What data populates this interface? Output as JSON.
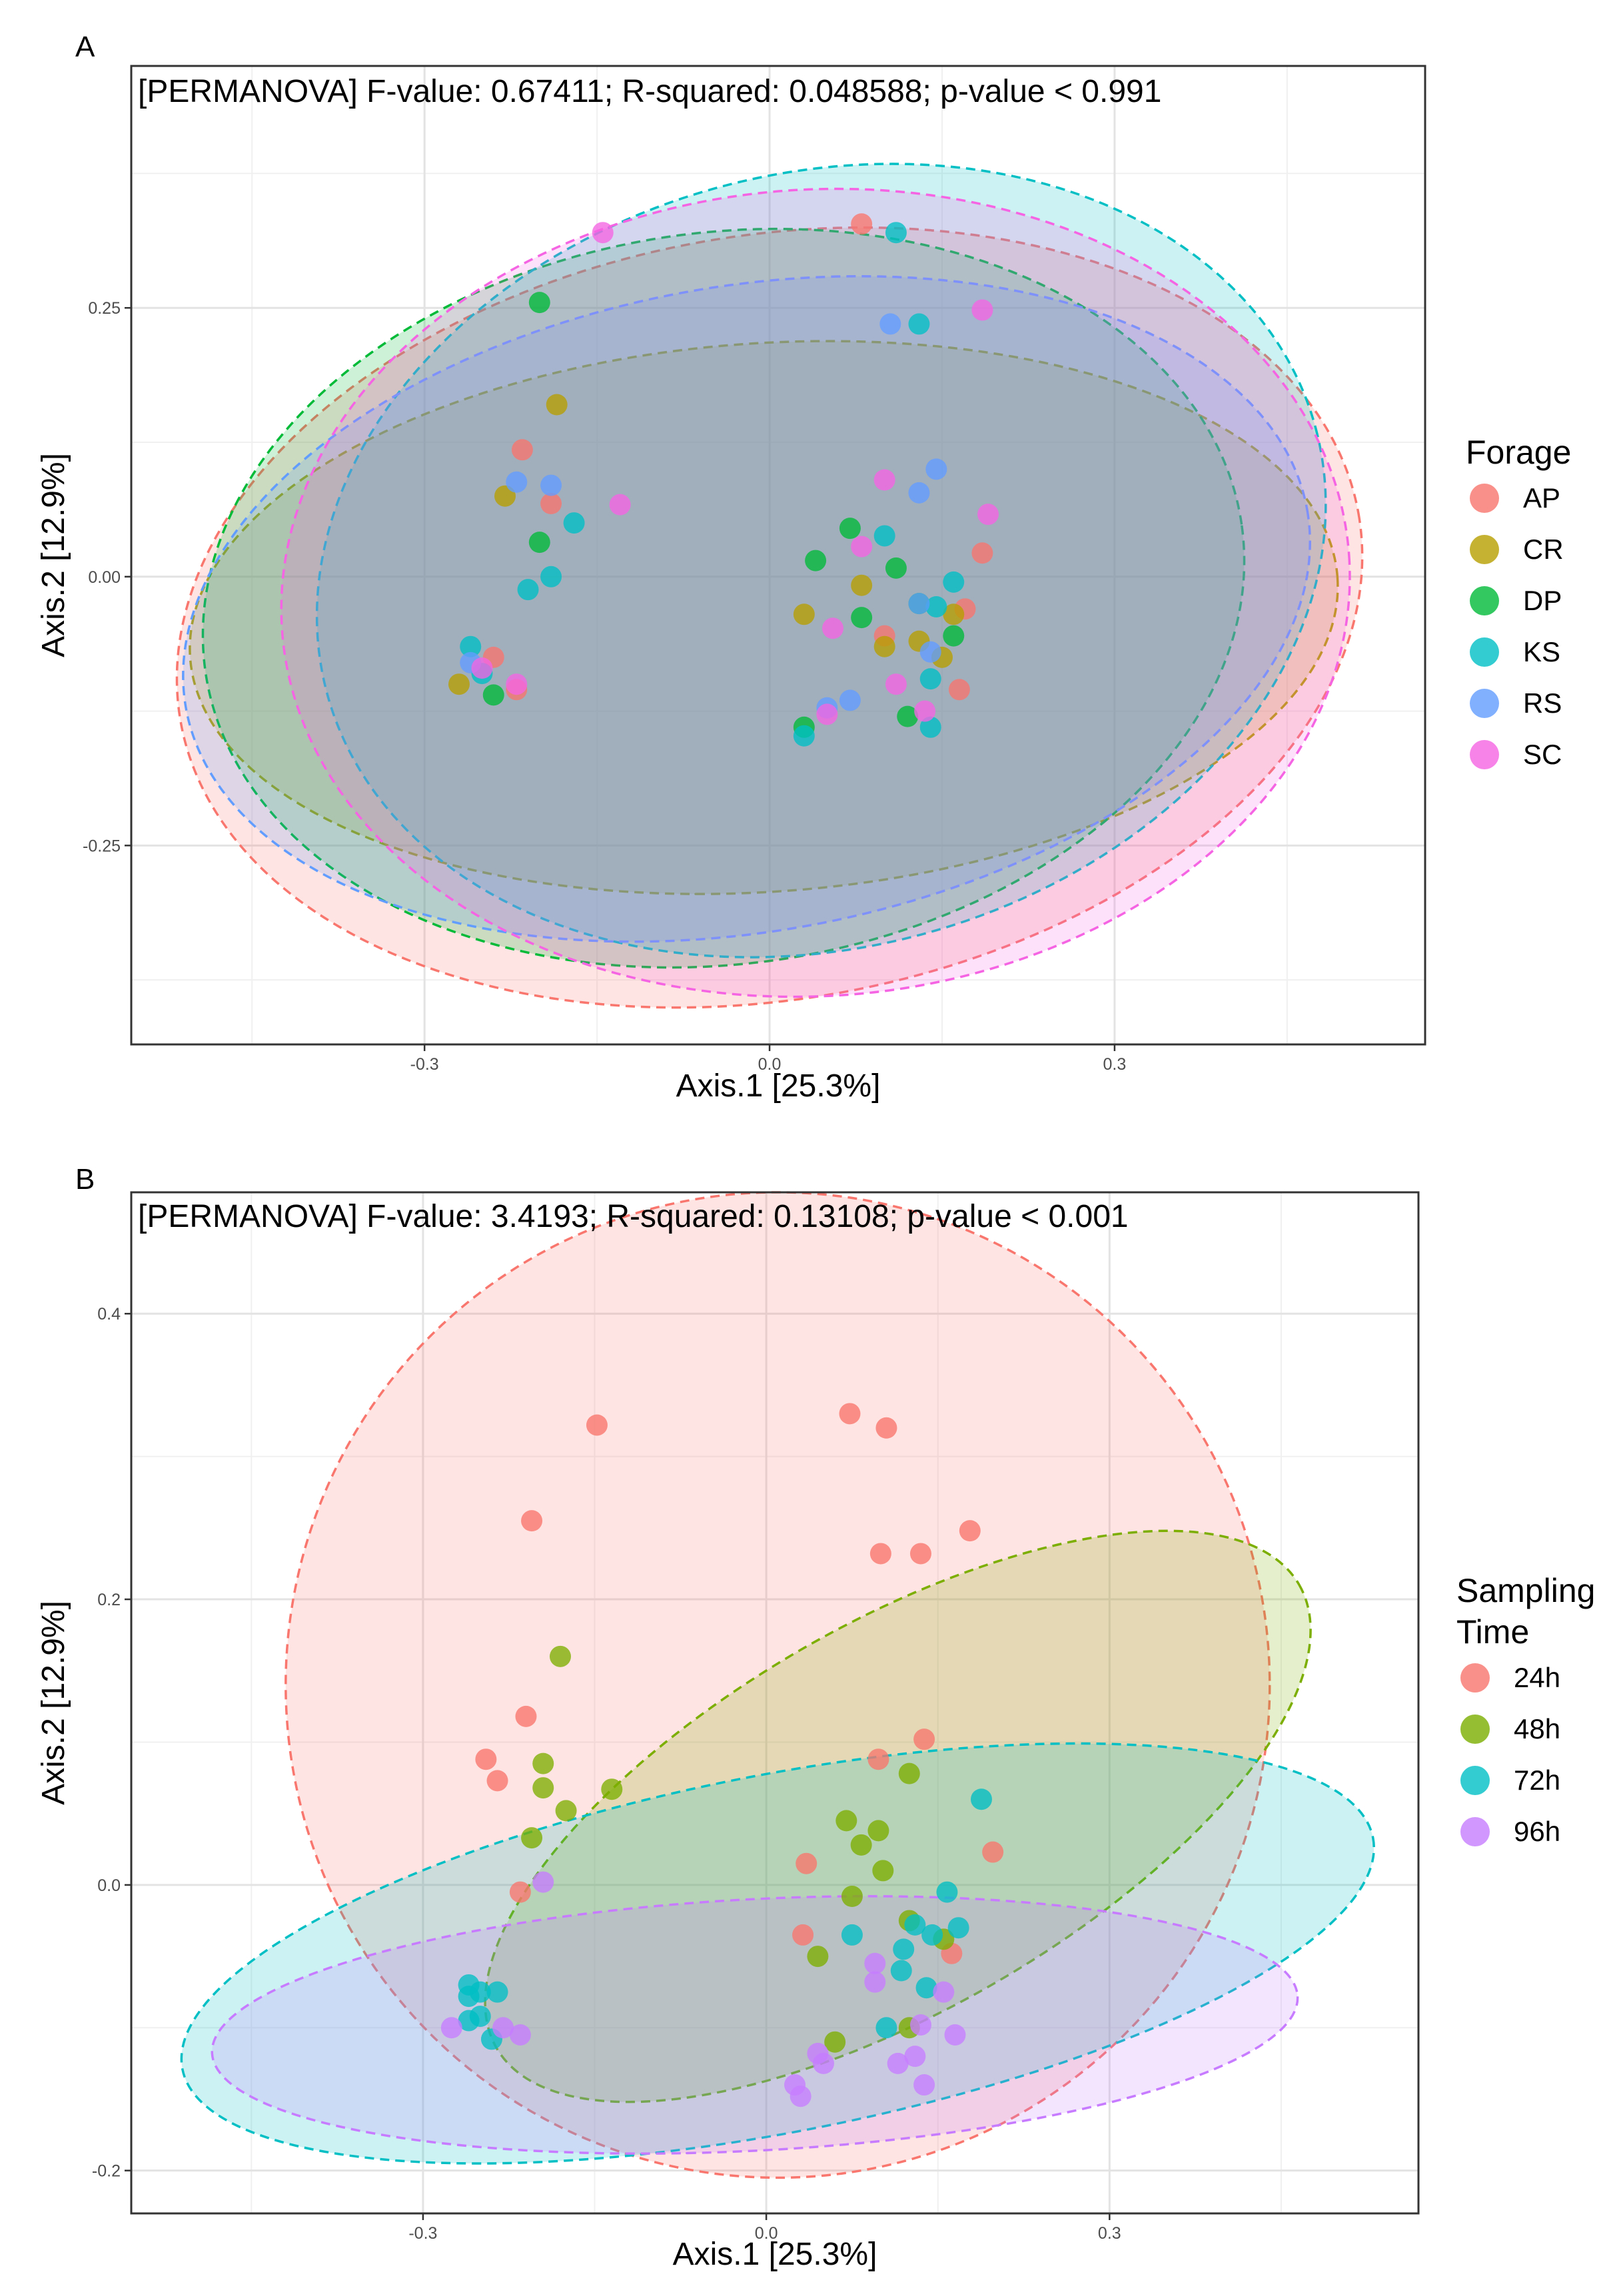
{
  "chart_data": [
    {
      "type": "scatter",
      "panel": "A",
      "title": "[PERMANOVA] F-value: 0.67411; R-squared: 0.048588; p-value < 0.991",
      "xlabel": "Axis.1 [25.3%]",
      "ylabel": "Axis.2 [12.9%]",
      "xlim": [
        -0.555,
        0.57
      ],
      "ylim": [
        -0.435,
        0.475
      ],
      "xticks": [
        -0.3,
        0.0,
        0.3
      ],
      "xtick_labels": [
        "-0.3",
        "0.0",
        "0.3"
      ],
      "yticks": [
        -0.25,
        0.0,
        0.25
      ],
      "ytick_labels": [
        "-0.25",
        "0.00",
        "0.25"
      ],
      "grid": true,
      "legend_title": "Forage",
      "legend_position": "right",
      "series": [
        {
          "name": "AP",
          "color": "#F8766D",
          "ellipse": {
            "cx": 0.0,
            "cy": -0.038,
            "rx": 0.52,
            "ry": 0.355,
            "angle": -10
          },
          "points": [
            [
              0.08,
              0.328
            ],
            [
              -0.215,
              0.118
            ],
            [
              -0.19,
              0.068
            ],
            [
              -0.24,
              -0.075
            ],
            [
              -0.22,
              -0.105
            ],
            [
              0.1,
              -0.055
            ],
            [
              0.17,
              -0.03
            ],
            [
              0.165,
              -0.105
            ],
            [
              0.185,
              0.022
            ]
          ]
        },
        {
          "name": "CR",
          "color": "#B79F00",
          "ellipse": {
            "cx": -0.005,
            "cy": -0.038,
            "rx": 0.5,
            "ry": 0.255,
            "angle": -4
          },
          "points": [
            [
              -0.185,
              0.16
            ],
            [
              -0.23,
              0.075
            ],
            [
              -0.27,
              -0.1
            ],
            [
              0.03,
              -0.035
            ],
            [
              0.08,
              -0.008
            ],
            [
              0.1,
              -0.065
            ],
            [
              0.13,
              -0.06
            ],
            [
              0.15,
              -0.075
            ],
            [
              0.16,
              -0.035
            ]
          ]
        },
        {
          "name": "DP",
          "color": "#00BA38",
          "ellipse": {
            "cx": -0.04,
            "cy": -0.02,
            "rx": 0.455,
            "ry": 0.34,
            "angle": -8
          },
          "points": [
            [
              -0.2,
              0.255
            ],
            [
              -0.2,
              0.032
            ],
            [
              -0.24,
              -0.11
            ],
            [
              0.04,
              0.015
            ],
            [
              0.07,
              0.045
            ],
            [
              0.08,
              -0.038
            ],
            [
              0.11,
              0.008
            ],
            [
              0.13,
              -0.025
            ],
            [
              0.16,
              -0.055
            ],
            [
              0.12,
              -0.13
            ],
            [
              0.03,
              -0.14
            ]
          ]
        },
        {
          "name": "KS",
          "color": "#00BFC4",
          "ellipse": {
            "cx": 0.045,
            "cy": 0.015,
            "rx": 0.445,
            "ry": 0.36,
            "angle": -15
          },
          "points": [
            [
              0.11,
              0.32
            ],
            [
              0.13,
              0.235
            ],
            [
              -0.17,
              0.05
            ],
            [
              -0.19,
              0.0
            ],
            [
              -0.21,
              -0.012
            ],
            [
              -0.26,
              -0.065
            ],
            [
              -0.25,
              -0.09
            ],
            [
              0.1,
              0.038
            ],
            [
              0.145,
              -0.028
            ],
            [
              0.16,
              -0.005
            ],
            [
              0.14,
              -0.095
            ],
            [
              0.14,
              -0.14
            ],
            [
              0.03,
              -0.148
            ]
          ]
        },
        {
          "name": "RS",
          "color": "#619CFF",
          "ellipse": {
            "cx": -0.02,
            "cy": -0.03,
            "rx": 0.495,
            "ry": 0.3,
            "angle": -10
          },
          "points": [
            [
              0.105,
              0.235
            ],
            [
              0.145,
              0.1
            ],
            [
              0.13,
              0.078
            ],
            [
              -0.22,
              0.088
            ],
            [
              -0.19,
              0.085
            ],
            [
              -0.26,
              -0.08
            ],
            [
              0.14,
              -0.07
            ],
            [
              0.07,
              -0.115
            ],
            [
              0.05,
              -0.122
            ],
            [
              0.13,
              -0.025
            ]
          ]
        },
        {
          "name": "SC",
          "color": "#F564E3",
          "ellipse": {
            "cx": 0.04,
            "cy": -0.015,
            "rx": 0.465,
            "ry": 0.375,
            "angle": -4
          },
          "points": [
            [
              -0.145,
              0.32
            ],
            [
              0.185,
              0.248
            ],
            [
              0.1,
              0.09
            ],
            [
              0.19,
              0.058
            ],
            [
              -0.13,
              0.067
            ],
            [
              0.08,
              0.028
            ],
            [
              -0.25,
              -0.085
            ],
            [
              -0.22,
              -0.1
            ],
            [
              0.055,
              -0.048
            ],
            [
              0.11,
              -0.1
            ],
            [
              0.135,
              -0.125
            ],
            [
              0.05,
              -0.128
            ]
          ]
        }
      ]
    },
    {
      "type": "scatter",
      "panel": "B",
      "title": "[PERMANOVA] F-value: 3.4193; R-squared: 0.13108; p-value < 0.001",
      "xlabel": "Axis.1 [25.3%]",
      "ylabel": "Axis.2 [12.9%]",
      "xlim": [
        -0.555,
        0.57
      ],
      "ylim": [
        -0.23,
        0.485
      ],
      "xticks": [
        -0.3,
        0.0,
        0.3
      ],
      "xtick_labels": [
        "-0.3",
        "0.0",
        "0.3"
      ],
      "yticks": [
        -0.2,
        0.0,
        0.2,
        0.4
      ],
      "ytick_labels": [
        "-0.2",
        "0.0",
        "0.2",
        "0.4"
      ],
      "grid": true,
      "legend_title": "Sampling Time",
      "legend_position": "right",
      "series": [
        {
          "name": "24h",
          "color": "#F8766D",
          "ellipse": {
            "cx": 0.01,
            "cy": 0.14,
            "rx": 0.43,
            "ry": 0.345,
            "angle": 0
          },
          "points": [
            [
              -0.148,
              0.322
            ],
            [
              0.073,
              0.33
            ],
            [
              0.105,
              0.32
            ],
            [
              -0.205,
              0.255
            ],
            [
              0.1,
              0.232
            ],
            [
              0.135,
              0.232
            ],
            [
              0.178,
              0.248
            ],
            [
              -0.21,
              0.118
            ],
            [
              -0.245,
              0.088
            ],
            [
              -0.235,
              0.073
            ],
            [
              0.098,
              0.088
            ],
            [
              0.138,
              0.102
            ],
            [
              0.198,
              0.023
            ],
            [
              0.035,
              0.015
            ],
            [
              -0.215,
              -0.005
            ],
            [
              0.032,
              -0.035
            ],
            [
              0.162,
              -0.048
            ]
          ]
        },
        {
          "name": "48h",
          "color": "#7CAE00",
          "ellipse": {
            "cx": 0.115,
            "cy": 0.048,
            "rx": 0.405,
            "ry": 0.135,
            "angle": -30
          },
          "points": [
            [
              -0.18,
              0.16
            ],
            [
              -0.195,
              0.085
            ],
            [
              -0.195,
              0.068
            ],
            [
              -0.175,
              0.052
            ],
            [
              -0.135,
              0.067
            ],
            [
              -0.205,
              0.033
            ],
            [
              0.07,
              0.045
            ],
            [
              0.098,
              0.038
            ],
            [
              0.083,
              0.028
            ],
            [
              0.102,
              0.01
            ],
            [
              0.125,
              0.078
            ],
            [
              0.075,
              -0.008
            ],
            [
              0.125,
              -0.025
            ],
            [
              0.045,
              -0.05
            ],
            [
              0.155,
              -0.038
            ],
            [
              0.06,
              -0.11
            ],
            [
              0.125,
              -0.1
            ]
          ]
        },
        {
          "name": "72h",
          "color": "#00BFC4",
          "ellipse": {
            "cx": 0.01,
            "cy": -0.048,
            "rx": 0.53,
            "ry": 0.125,
            "angle": -11
          },
          "points": [
            [
              0.188,
              0.06
            ],
            [
              0.158,
              -0.005
            ],
            [
              0.075,
              -0.035
            ],
            [
              0.13,
              -0.028
            ],
            [
              0.145,
              -0.035
            ],
            [
              0.168,
              -0.03
            ],
            [
              0.12,
              -0.045
            ],
            [
              0.118,
              -0.06
            ],
            [
              0.14,
              -0.072
            ],
            [
              0.105,
              -0.1
            ],
            [
              -0.26,
              -0.07
            ],
            [
              -0.26,
              -0.078
            ],
            [
              -0.25,
              -0.075
            ],
            [
              -0.235,
              -0.075
            ],
            [
              -0.26,
              -0.095
            ],
            [
              -0.25,
              -0.092
            ],
            [
              -0.24,
              -0.108
            ]
          ]
        },
        {
          "name": "96h",
          "color": "#C77CFF",
          "ellipse": {
            "cx": -0.01,
            "cy": -0.098,
            "rx": 0.475,
            "ry": 0.088,
            "angle": -3
          },
          "points": [
            [
              -0.195,
              0.002
            ],
            [
              0.095,
              -0.055
            ],
            [
              0.095,
              -0.068
            ],
            [
              0.155,
              -0.075
            ],
            [
              -0.275,
              -0.1
            ],
            [
              -0.23,
              -0.1
            ],
            [
              -0.215,
              -0.105
            ],
            [
              0.165,
              -0.105
            ],
            [
              0.135,
              -0.098
            ],
            [
              0.045,
              -0.118
            ],
            [
              0.05,
              -0.125
            ],
            [
              0.115,
              -0.125
            ],
            [
              0.13,
              -0.12
            ],
            [
              0.025,
              -0.14
            ],
            [
              0.03,
              -0.148
            ],
            [
              0.138,
              -0.14
            ]
          ]
        }
      ]
    }
  ]
}
